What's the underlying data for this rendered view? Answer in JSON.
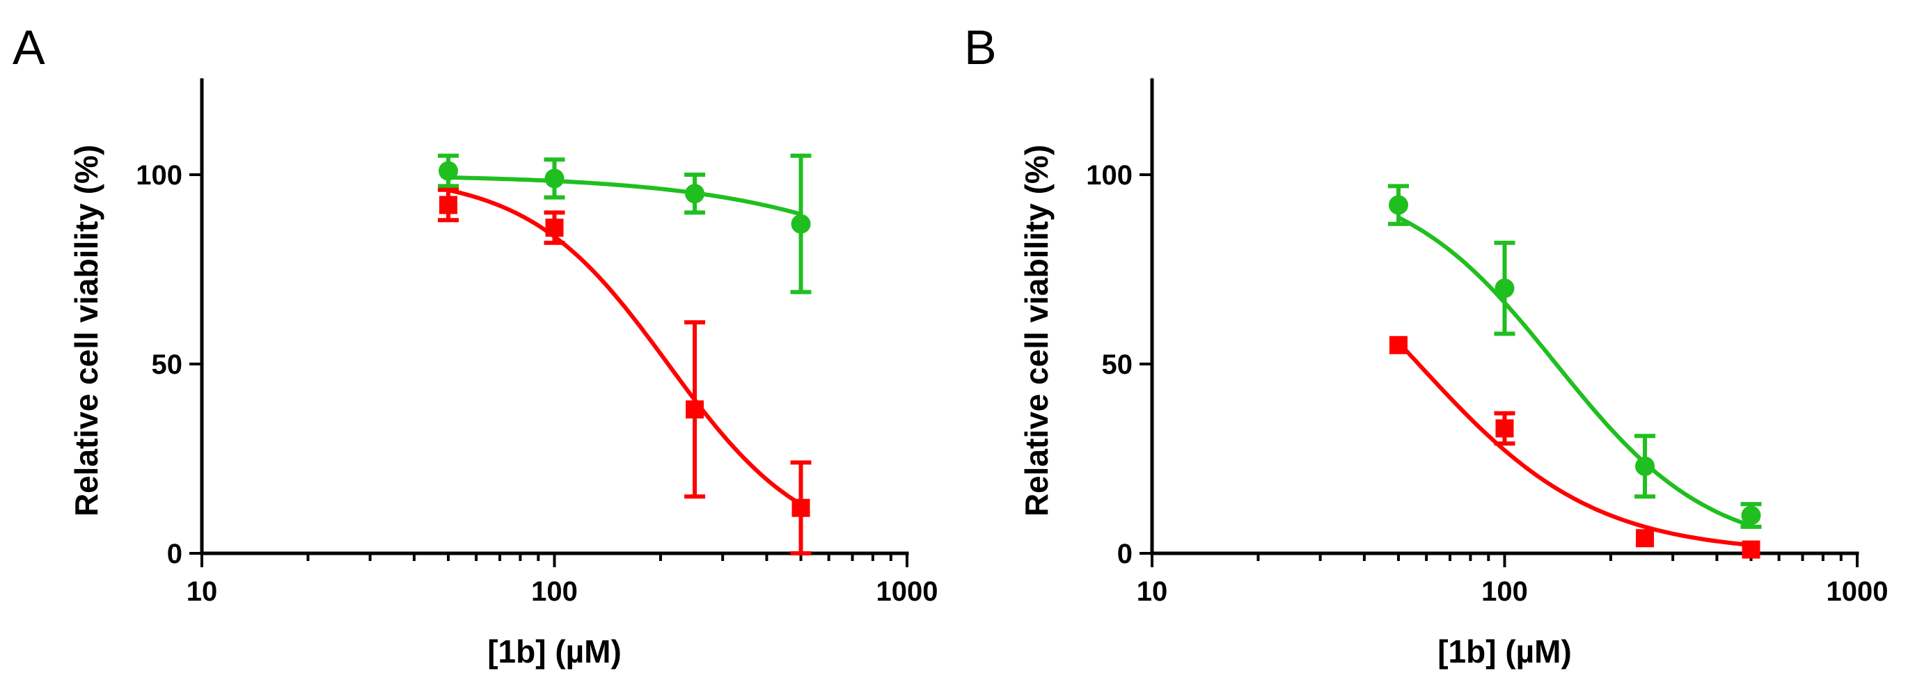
{
  "chart_data": [
    {
      "type": "scatter",
      "panel_label": "A",
      "xlabel": "[1b] (µM)",
      "ylabel": "Relative cell viability (%)",
      "x_scale": "log",
      "xlim": [
        10,
        1000
      ],
      "ylim": [
        0,
        125
      ],
      "x_ticks": [
        10,
        100,
        1000
      ],
      "x_tick_labels": [
        "10",
        "100",
        "1000"
      ],
      "y_ticks": [
        0,
        50,
        100
      ],
      "y_tick_labels": [
        "0",
        "50",
        "100"
      ],
      "series": [
        {
          "name": "green",
          "color": "#1fbf1f",
          "marker": "circle",
          "x": [
            50,
            100,
            250,
            500
          ],
          "y": [
            101,
            99,
            95,
            87
          ],
          "err": [
            4,
            5,
            5,
            18
          ],
          "fit": {
            "top": 100,
            "ic50": 3000,
            "hill": 1.2
          }
        },
        {
          "name": "red",
          "color": "#ff0000",
          "marker": "square",
          "x": [
            50,
            100,
            250,
            500
          ],
          "y": [
            92,
            86,
            38,
            12
          ],
          "err": [
            4,
            4,
            23,
            12
          ],
          "fit": {
            "top": 100,
            "ic50": 210,
            "hill": 2.2
          }
        }
      ]
    },
    {
      "type": "scatter",
      "panel_label": "B",
      "xlabel": "[1b] (µM)",
      "ylabel": "Relative cell viability (%)",
      "x_scale": "log",
      "xlim": [
        10,
        1000
      ],
      "ylim": [
        0,
        125
      ],
      "x_ticks": [
        10,
        100,
        1000
      ],
      "x_tick_labels": [
        "10",
        "100",
        "1000"
      ],
      "y_ticks": [
        0,
        50,
        100
      ],
      "y_tick_labels": [
        "0",
        "50",
        "100"
      ],
      "series": [
        {
          "name": "green",
          "color": "#1fbf1f",
          "marker": "circle",
          "x": [
            50,
            100,
            250,
            500
          ],
          "y": [
            92,
            70,
            23,
            10
          ],
          "err": [
            5,
            12,
            8,
            3
          ],
          "fit": {
            "top": 100,
            "ic50": 140,
            "hill": 2.0
          }
        },
        {
          "name": "red",
          "color": "#ff0000",
          "marker": "square",
          "x": [
            50,
            100,
            250,
            500
          ],
          "y": [
            55,
            33,
            4,
            1
          ],
          "err": [
            0,
            4,
            0,
            0
          ],
          "fit": {
            "top": 100,
            "ic50": 57,
            "hill": 1.75
          }
        }
      ]
    }
  ]
}
